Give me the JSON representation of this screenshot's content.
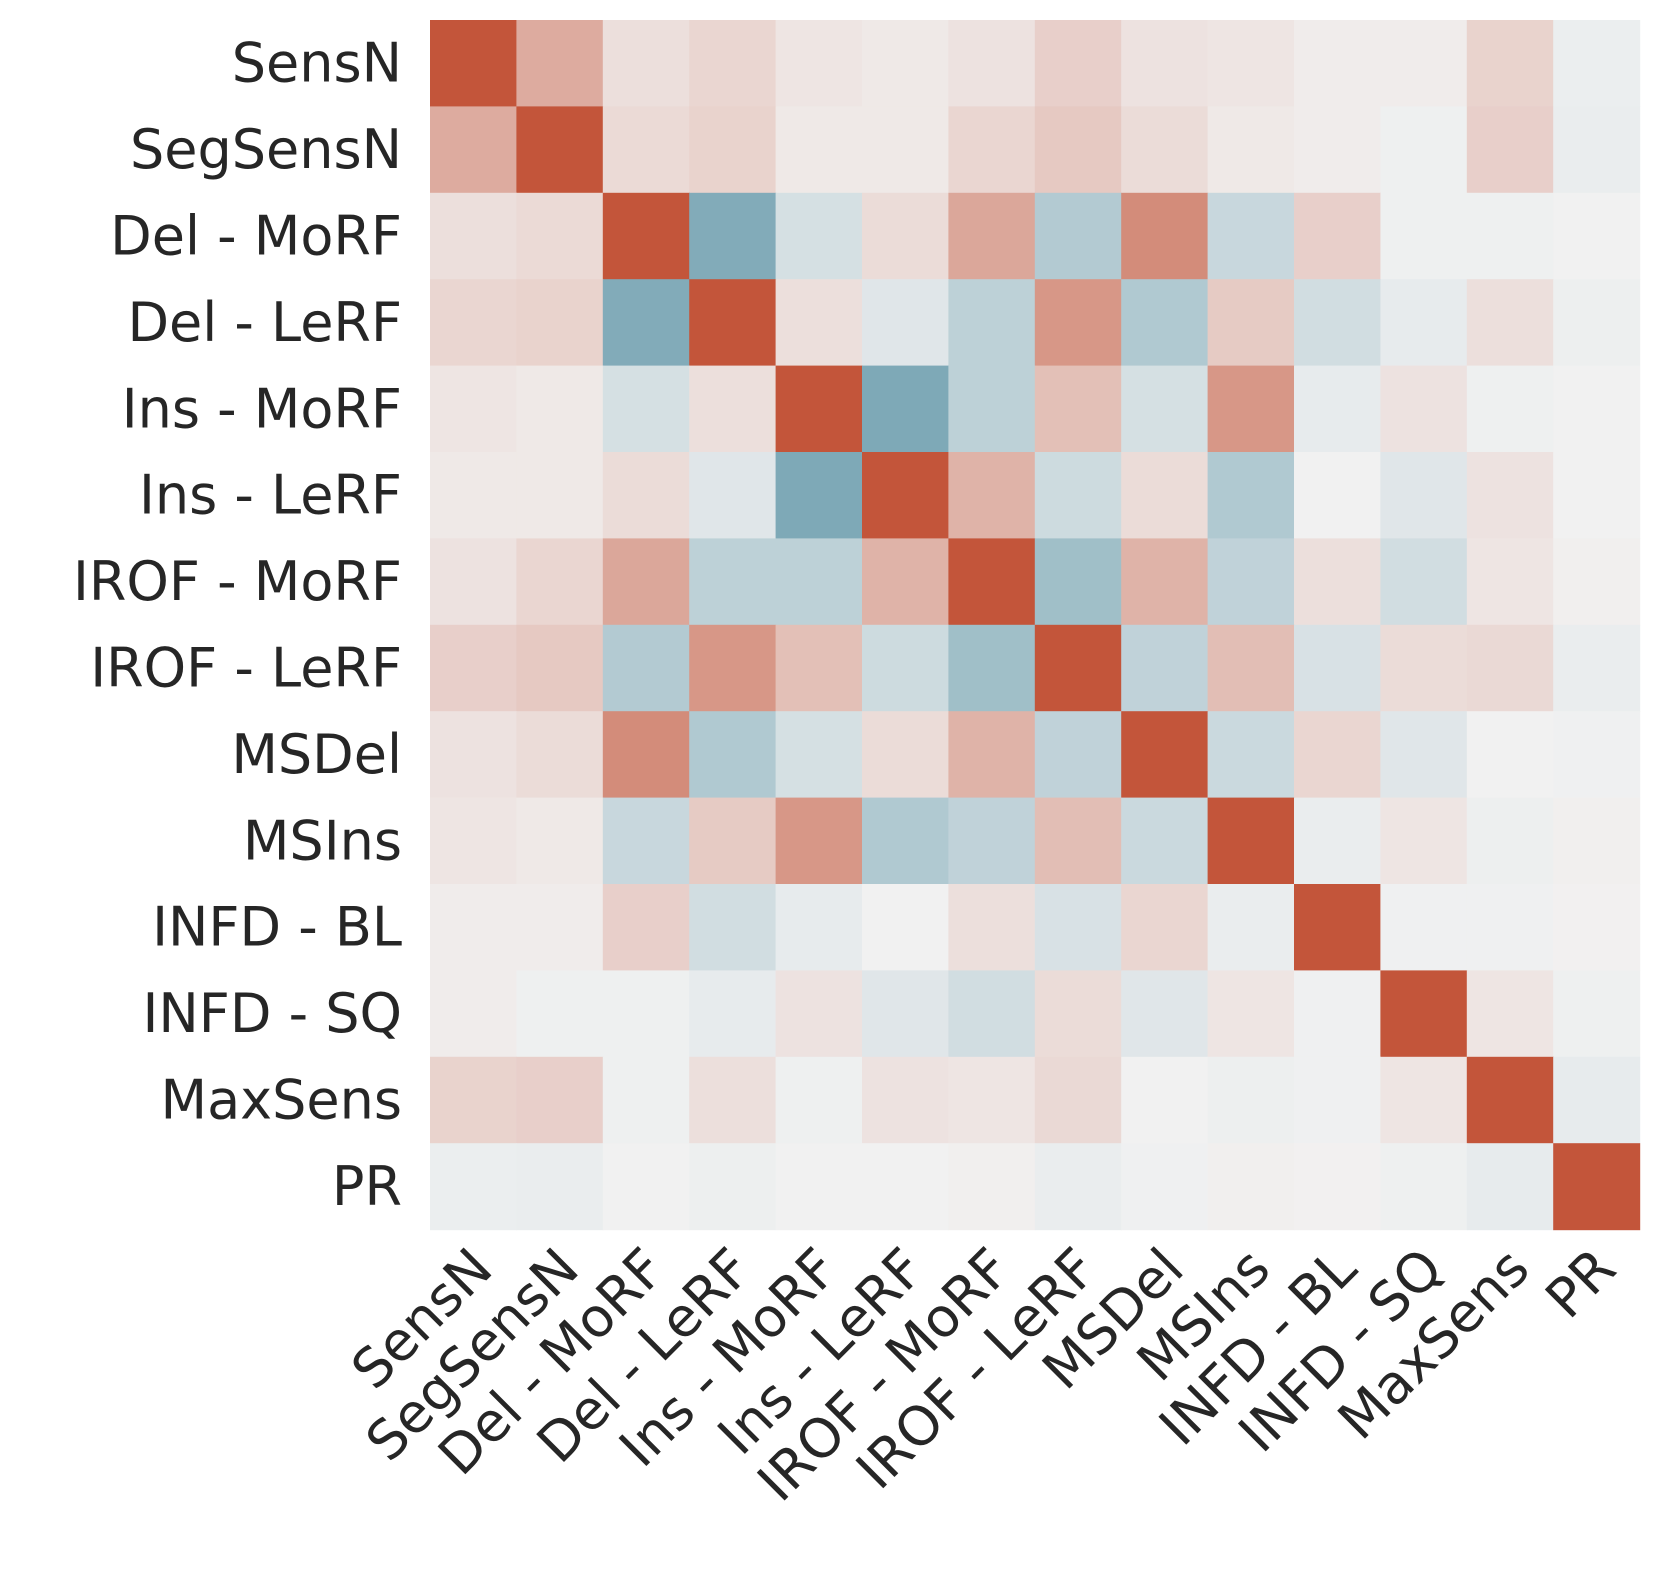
{
  "chart_data": {
    "type": "heatmap",
    "title": "",
    "xlabel": "",
    "ylabel": "",
    "labels": [
      "SensN",
      "SegSensN",
      "Del - MoRF",
      "Del - LeRF",
      "Ins - MoRF",
      "Ins - LeRF",
      "IROF - MoRF",
      "IROF - LeRF",
      "MSDel",
      "MSIns",
      "INFD - BL",
      "INFD - SQ",
      "MaxSens",
      "PR"
    ],
    "value_range": [
      -1,
      1
    ],
    "colormap": {
      "negative": "#6E9FAF",
      "neutral": "#F2F2F2",
      "positive": "#C3553A"
    },
    "matrix": [
      [
        1.0,
        0.45,
        0.12,
        0.18,
        0.08,
        0.06,
        0.1,
        0.22,
        0.1,
        0.08,
        0.04,
        0.04,
        0.2,
        -0.05
      ],
      [
        0.45,
        1.0,
        0.15,
        0.2,
        0.06,
        0.06,
        0.18,
        0.26,
        0.14,
        0.06,
        0.04,
        -0.03,
        0.22,
        -0.06
      ],
      [
        0.12,
        0.15,
        1.0,
        -0.85,
        -0.22,
        0.14,
        0.48,
        -0.48,
        0.65,
        -0.32,
        0.22,
        -0.03,
        -0.03,
        -0.01
      ],
      [
        0.18,
        0.2,
        -0.85,
        1.0,
        0.12,
        -0.14,
        -0.4,
        0.58,
        -0.5,
        0.25,
        -0.25,
        -0.08,
        0.12,
        -0.04
      ],
      [
        0.08,
        0.06,
        -0.22,
        0.12,
        1.0,
        -0.88,
        -0.4,
        0.32,
        -0.22,
        0.58,
        -0.08,
        0.1,
        -0.03,
        -0.01
      ],
      [
        0.06,
        0.06,
        0.14,
        -0.14,
        -0.88,
        1.0,
        0.4,
        -0.28,
        0.14,
        -0.5,
        -0.01,
        -0.14,
        0.1,
        -0.01
      ],
      [
        0.1,
        0.18,
        0.48,
        -0.4,
        -0.4,
        0.4,
        1.0,
        -0.62,
        0.4,
        -0.38,
        0.12,
        -0.25,
        0.08,
        0.02
      ],
      [
        0.22,
        0.26,
        -0.48,
        0.58,
        0.32,
        -0.28,
        -0.62,
        1.0,
        -0.38,
        0.33,
        -0.2,
        0.14,
        0.16,
        -0.06
      ],
      [
        0.1,
        0.14,
        0.65,
        -0.5,
        -0.22,
        0.14,
        0.4,
        -0.38,
        1.0,
        -0.3,
        0.18,
        -0.14,
        -0.01,
        -0.02
      ],
      [
        0.08,
        0.06,
        -0.32,
        0.25,
        0.58,
        -0.5,
        -0.38,
        0.33,
        -0.3,
        1.0,
        -0.06,
        0.08,
        -0.04,
        0.02
      ],
      [
        0.04,
        0.04,
        0.22,
        -0.25,
        -0.08,
        -0.01,
        0.12,
        -0.2,
        0.18,
        -0.06,
        1.0,
        -0.02,
        -0.02,
        0.01
      ],
      [
        0.04,
        -0.03,
        -0.03,
        -0.08,
        0.1,
        -0.14,
        -0.25,
        0.14,
        -0.14,
        0.08,
        -0.02,
        1.0,
        0.08,
        -0.03
      ],
      [
        0.2,
        0.22,
        -0.03,
        0.12,
        -0.03,
        0.1,
        0.08,
        0.16,
        -0.01,
        -0.04,
        -0.02,
        0.08,
        1.0,
        -0.08
      ],
      [
        -0.05,
        -0.06,
        -0.01,
        -0.04,
        -0.01,
        -0.01,
        0.02,
        -0.06,
        -0.02,
        0.02,
        0.01,
        -0.03,
        -0.08,
        1.0
      ]
    ]
  }
}
